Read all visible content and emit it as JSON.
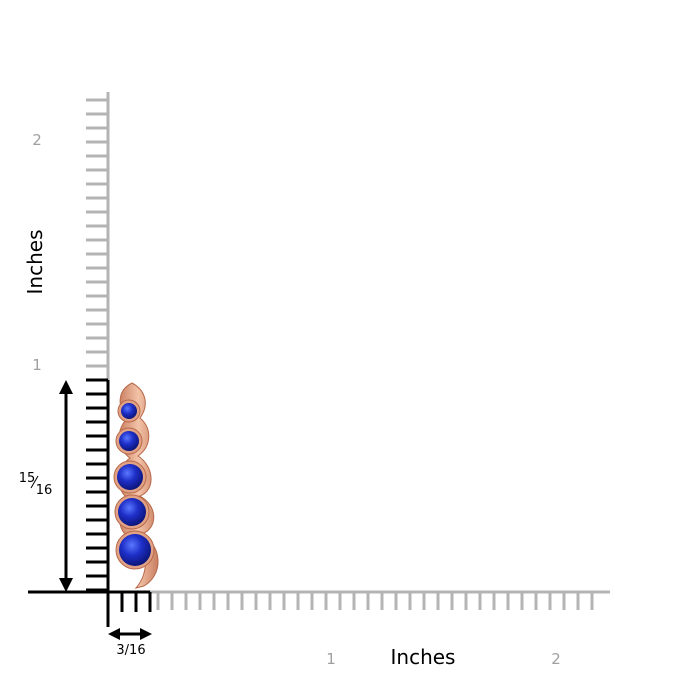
{
  "axes": {
    "y_title": "Inches",
    "x_title": "Inches",
    "y_ticks": [
      "1",
      "2"
    ],
    "x_ticks": [
      "1",
      "2"
    ]
  },
  "dimensions": {
    "height_numerator": "15",
    "height_denominator": "16",
    "width_label": "3/16"
  },
  "product": {
    "metal_color": "#E0A184",
    "stone_color": "#1E2FC8",
    "stone_count": 5
  },
  "colors": {
    "ruler": "#b4b4b4",
    "axis_black": "#000000",
    "label_gray": "#a0a0a0"
  }
}
